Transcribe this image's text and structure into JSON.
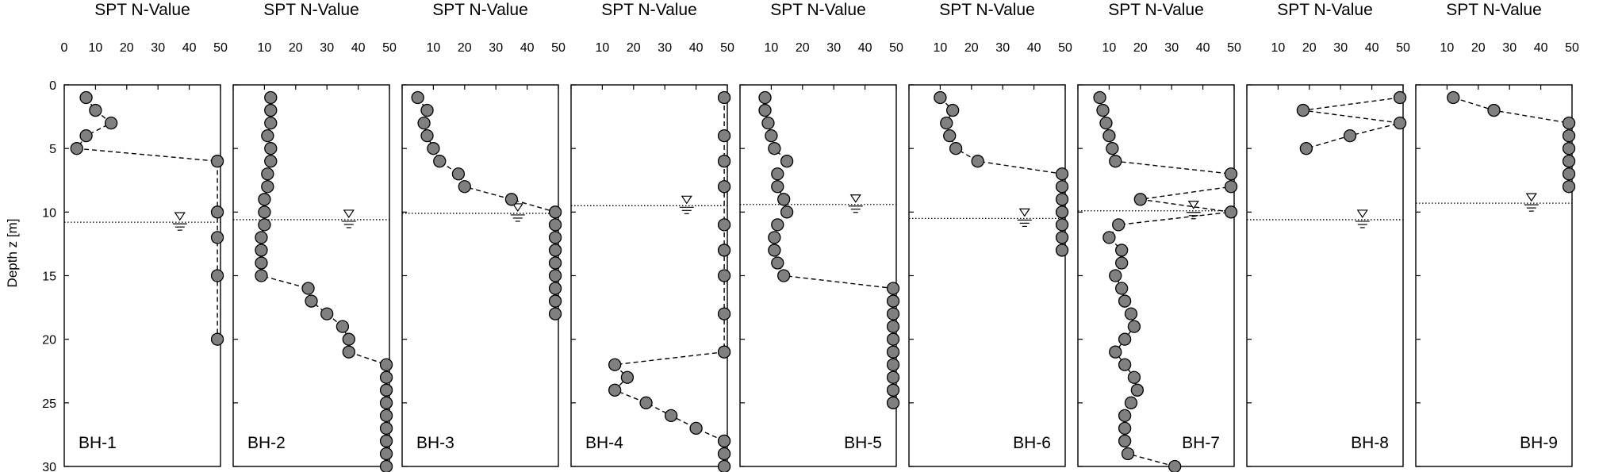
{
  "chart_data": {
    "type": "scatter",
    "ylabel": "Depth z [m]",
    "ylim": [
      0,
      30
    ],
    "y_ticks": [
      0,
      5,
      10,
      15,
      20,
      25,
      30
    ],
    "y_inverted": true,
    "xlim": [
      0,
      50
    ],
    "x_ticks": [
      0,
      10,
      20,
      30,
      40,
      50
    ],
    "line_style": "dashed",
    "marker": "circle",
    "marker_color": "#808080",
    "panels": [
      {
        "title": "SPT N-Value",
        "label": "BH-1",
        "label_position": "bottom-left",
        "x_ticks": [
          0,
          10,
          20,
          30,
          40,
          50
        ],
        "water_table_depth": 10.8,
        "water_symbol_x": 37,
        "points": [
          [
            7,
            1
          ],
          [
            10,
            2
          ],
          [
            15,
            3
          ],
          [
            7,
            4
          ],
          [
            4,
            5
          ],
          [
            49,
            6
          ],
          [
            49,
            10
          ],
          [
            49,
            12
          ],
          [
            49,
            15
          ],
          [
            49,
            20
          ]
        ]
      },
      {
        "title": "SPT N-Value",
        "label": "BH-2",
        "label_position": "bottom-left",
        "x_ticks": [
          10,
          20,
          30,
          40,
          50
        ],
        "water_table_depth": 10.6,
        "water_symbol_x": 37,
        "points": [
          [
            12,
            1
          ],
          [
            12,
            2
          ],
          [
            12,
            3
          ],
          [
            11,
            4
          ],
          [
            12,
            5
          ],
          [
            12,
            6
          ],
          [
            11,
            7
          ],
          [
            11,
            8
          ],
          [
            10,
            9
          ],
          [
            10,
            10
          ],
          [
            10,
            11
          ],
          [
            9,
            12
          ],
          [
            9,
            13
          ],
          [
            9,
            14
          ],
          [
            9,
            15
          ],
          [
            24,
            16
          ],
          [
            25,
            17
          ],
          [
            30,
            18
          ],
          [
            35,
            19
          ],
          [
            37,
            20
          ],
          [
            37,
            21
          ],
          [
            49,
            22
          ],
          [
            49,
            23
          ],
          [
            49,
            24
          ],
          [
            49,
            25
          ],
          [
            49,
            26
          ],
          [
            49,
            27
          ],
          [
            49,
            28
          ],
          [
            49,
            29
          ],
          [
            49,
            30
          ]
        ]
      },
      {
        "title": "SPT N-Value",
        "label": "BH-3",
        "label_position": "bottom-left",
        "x_ticks": [
          10,
          20,
          30,
          40,
          50
        ],
        "water_table_depth": 10.1,
        "water_symbol_x": 37,
        "points": [
          [
            5,
            1
          ],
          [
            8,
            2
          ],
          [
            7,
            3
          ],
          [
            8,
            4
          ],
          [
            10,
            5
          ],
          [
            12,
            6
          ],
          [
            18,
            7
          ],
          [
            20,
            8
          ],
          [
            35,
            9
          ],
          [
            49,
            10
          ],
          [
            49,
            11
          ],
          [
            49,
            12
          ],
          [
            49,
            13
          ],
          [
            49,
            14
          ],
          [
            49,
            15
          ],
          [
            49,
            16
          ],
          [
            49,
            17
          ],
          [
            49,
            18
          ]
        ]
      },
      {
        "title": "SPT N-Value",
        "label": "BH-4",
        "label_position": "bottom-left",
        "x_ticks": [
          10,
          20,
          30,
          40,
          50
        ],
        "water_table_depth": 9.5,
        "water_symbol_x": 37,
        "points": [
          [
            49,
            1
          ],
          [
            49,
            4
          ],
          [
            49,
            6
          ],
          [
            49,
            8
          ],
          [
            49,
            11
          ],
          [
            49,
            13
          ],
          [
            49,
            15
          ],
          [
            49,
            18
          ],
          [
            49,
            21
          ],
          [
            14,
            22
          ],
          [
            18,
            23
          ],
          [
            14,
            24
          ],
          [
            24,
            25
          ],
          [
            32,
            26
          ],
          [
            40,
            27
          ],
          [
            49,
            28
          ],
          [
            49,
            29
          ],
          [
            49,
            30
          ]
        ]
      },
      {
        "title": "SPT N-Value",
        "label": "BH-5",
        "label_position": "bottom-right",
        "x_ticks": [
          10,
          20,
          30,
          40,
          50
        ],
        "water_table_depth": 9.4,
        "water_symbol_x": 37,
        "points": [
          [
            8,
            1
          ],
          [
            8,
            2
          ],
          [
            9,
            3
          ],
          [
            10,
            4
          ],
          [
            11,
            5
          ],
          [
            15,
            6
          ],
          [
            12,
            7
          ],
          [
            12,
            8
          ],
          [
            14,
            9
          ],
          [
            15,
            10
          ],
          [
            12,
            11
          ],
          [
            11,
            12
          ],
          [
            11,
            13
          ],
          [
            12,
            14
          ],
          [
            14,
            15
          ],
          [
            49,
            16
          ],
          [
            49,
            17
          ],
          [
            49,
            18
          ],
          [
            49,
            19
          ],
          [
            49,
            20
          ],
          [
            49,
            21
          ],
          [
            49,
            22
          ],
          [
            49,
            23
          ],
          [
            49,
            24
          ],
          [
            49,
            25
          ]
        ]
      },
      {
        "title": "SPT N-Value",
        "label": "BH-6",
        "label_position": "bottom-right",
        "x_ticks": [
          10,
          20,
          30,
          40,
          50
        ],
        "water_table_depth": 10.5,
        "water_symbol_x": 37,
        "points": [
          [
            10,
            1
          ],
          [
            14,
            2
          ],
          [
            12,
            3
          ],
          [
            13,
            4
          ],
          [
            15,
            5
          ],
          [
            22,
            6
          ],
          [
            49,
            7
          ],
          [
            49,
            8
          ],
          [
            49,
            9
          ],
          [
            49,
            10
          ],
          [
            49,
            11
          ],
          [
            49,
            12
          ],
          [
            49,
            13
          ]
        ]
      },
      {
        "title": "SPT N-Value",
        "label": "BH-7",
        "label_position": "bottom-right",
        "x_ticks": [
          10,
          20,
          30,
          40,
          50
        ],
        "water_table_depth": 9.9,
        "water_symbol_x": 37,
        "points": [
          [
            7,
            1
          ],
          [
            8,
            2
          ],
          [
            9,
            3
          ],
          [
            10,
            4
          ],
          [
            11,
            5
          ],
          [
            12,
            6
          ],
          [
            49,
            7
          ],
          [
            49,
            8
          ],
          [
            20,
            9
          ],
          [
            49,
            10
          ],
          [
            13,
            11
          ],
          [
            10,
            12
          ],
          [
            14,
            13
          ],
          [
            14,
            14
          ],
          [
            12,
            15
          ],
          [
            14,
            16
          ],
          [
            15,
            17
          ],
          [
            17,
            18
          ],
          [
            18,
            19
          ],
          [
            15,
            20
          ],
          [
            12,
            21
          ],
          [
            15,
            22
          ],
          [
            18,
            23
          ],
          [
            19,
            24
          ],
          [
            17,
            25
          ],
          [
            15,
            26
          ],
          [
            15,
            27
          ],
          [
            15,
            28
          ],
          [
            16,
            29
          ],
          [
            31,
            30
          ]
        ]
      },
      {
        "title": "SPT N-Value",
        "label": "BH-8",
        "label_position": "bottom-right",
        "x_ticks": [
          10,
          20,
          30,
          40,
          50
        ],
        "water_table_depth": 10.6,
        "water_symbol_x": 37,
        "points": [
          [
            49,
            1
          ],
          [
            18,
            2
          ],
          [
            49,
            3
          ],
          [
            33,
            4
          ],
          [
            19,
            5
          ]
        ]
      },
      {
        "title": "SPT N-Value",
        "label": "BH-9",
        "label_position": "bottom-right",
        "x_ticks": [
          10,
          20,
          30,
          40,
          50
        ],
        "water_table_depth": 9.3,
        "water_symbol_x": 37,
        "points": [
          [
            12,
            1
          ],
          [
            25,
            2
          ],
          [
            49,
            3
          ],
          [
            49,
            4
          ],
          [
            49,
            5
          ],
          [
            49,
            6
          ],
          [
            49,
            7
          ],
          [
            49,
            8
          ]
        ]
      }
    ]
  }
}
